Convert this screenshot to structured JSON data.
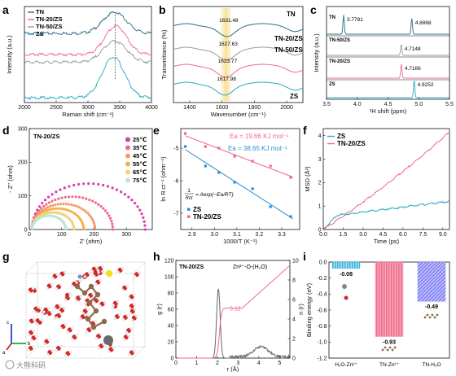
{
  "watermark": "大熊科研",
  "panels": {
    "a": {
      "letter": "a",
      "chart_data": {
        "type": "line",
        "xlabel": "Raman shift (cm⁻¹)",
        "ylabel": "Intensity (a.u.)",
        "xlim": [
          2000,
          4000
        ],
        "xticks": [
          "2000",
          "2500",
          "3000",
          "3500",
          "4000"
        ],
        "legend": "top-left",
        "series": [
          {
            "name": "TN",
            "color": "#2b6f80",
            "offset": 0.72,
            "peak": 3420,
            "width": 260,
            "amp": 0.22
          },
          {
            "name": "TN-20/ZS",
            "color": "#f06a8a",
            "offset": 0.5,
            "peak": 3440,
            "width": 240,
            "amp": 0.3
          },
          {
            "name": "TN-50/ZS",
            "color": "#9a9a9a",
            "offset": 0.42,
            "peak": 3420,
            "width": 260,
            "amp": 0.22
          },
          {
            "name": "ZS",
            "color": "#29a9c2",
            "offset": 0.05,
            "peak": 3400,
            "width": 250,
            "amp": 0.42
          }
        ]
      }
    },
    "b": {
      "letter": "b",
      "chart_data": {
        "type": "line",
        "xlabel": "Wavenumber (cm⁻¹)",
        "ylabel": "Transmittance (%)",
        "xlim": [
          1300,
          2100
        ],
        "xticks": [
          "1400",
          "1600",
          "1800",
          "2000"
        ],
        "legend": "top-right",
        "series": [
          {
            "name": "TN",
            "color": "#2b6f80",
            "peak": 1631.48,
            "label": "1631.48"
          },
          {
            "name": "TN-20/ZS",
            "color": "#9a9a9a",
            "peak": 1627.63,
            "label": "1627.63"
          },
          {
            "name": "TN-50/ZS",
            "color": "#f06a8a",
            "peak": 1623.77,
            "label": "1623.77"
          },
          {
            "name": "ZS",
            "color": "#29a9c2",
            "peak": 1617.98,
            "label": "1617.98"
          }
        ]
      }
    },
    "c": {
      "letter": "c",
      "chart_data": {
        "type": "line",
        "xlabel": "¹H shift (ppm)",
        "ylabel": "Intensity (a.u.)",
        "xlim": [
          5.5,
          3.5
        ],
        "xticks": [
          "3.5",
          "4.0",
          "4.5",
          "5.0",
          "5.5"
        ],
        "series": [
          {
            "name": "TN",
            "color": "#2b6f80",
            "peaks": [
              3.7781,
              4.8868
            ],
            "labels": [
              "3.7781",
              "4.8868"
            ]
          },
          {
            "name": "TN-50/ZS",
            "color": "#9a9a9a",
            "peaks": [
              4.7148
            ],
            "labels": [
              "4.7148"
            ]
          },
          {
            "name": "TN-20/ZS",
            "color": "#f06a8a",
            "peaks": [
              4.7166
            ],
            "labels": [
              "4.7166"
            ]
          },
          {
            "name": "ZS",
            "color": "#29a9c2",
            "peaks": [
              4.9252
            ],
            "labels": [
              "4.9252"
            ]
          }
        ]
      }
    },
    "d": {
      "letter": "d",
      "sample": "TN-20/ZS",
      "chart_data": {
        "type": "scatter",
        "xlabel": "Z' (ohm)",
        "ylabel": "- Z'' (ohm)",
        "xlim": [
          0,
          380
        ],
        "ylim": [
          0,
          300
        ],
        "xticks": [
          "0",
          "100",
          "200",
          "300"
        ],
        "yticks": [
          "0",
          "100",
          "200",
          "300"
        ],
        "series": [
          {
            "name": "25℃",
            "color": "#d63ea8",
            "diameter": 350
          },
          {
            "name": "35℃",
            "color": "#f06a8a",
            "diameter": 250
          },
          {
            "name": "45℃",
            "color": "#f59a6a",
            "diameter": 195
          },
          {
            "name": "55℃",
            "color": "#f4b24a",
            "diameter": 160
          },
          {
            "name": "65℃",
            "color": "#f6d07a",
            "diameter": 130
          },
          {
            "name": "75℃",
            "color": "#b8e6d8",
            "diameter": 105
          }
        ]
      }
    },
    "e": {
      "letter": "e",
      "chart_data": {
        "type": "scatter",
        "xlabel": "1000/T (K⁻¹)",
        "ylabel": "ln R ct⁻¹ (ohm⁻¹)",
        "xlim": [
          2.85,
          3.38
        ],
        "ylim": [
          -7.5,
          -4.4
        ],
        "xticks": [
          "2.9",
          "3.0",
          "3.1",
          "3.2",
          "3.3"
        ],
        "yticks": [
          "-5",
          "-6",
          "-7"
        ],
        "ea_pink": "Ea = 19.66 KJ mol⁻¹",
        "ea_blue": "Ea = 38.65 KJ mol⁻¹",
        "equation_lhs": "1",
        "equation_lhs_den": "Rct",
        "equation_rhs": "= Aexp(−Ea/RT)",
        "series": [
          {
            "name": "ZS",
            "color": "#2a8fd0",
            "x": [
              2.87,
              2.96,
              3.02,
              3.09,
              3.17,
              3.25,
              3.34
            ],
            "y": [
              -4.95,
              -5.55,
              -5.75,
              -6.05,
              -6.25,
              -6.8,
              -7.1
            ]
          },
          {
            "name": "TN-20/ZS",
            "color": "#f06a8a",
            "x": [
              2.87,
              2.96,
              3.02,
              3.09,
              3.17,
              3.25,
              3.34
            ],
            "y": [
              -4.55,
              -4.95,
              -5.0,
              -5.25,
              -5.4,
              -5.55,
              -5.9
            ]
          }
        ]
      }
    },
    "f": {
      "letter": "f",
      "chart_data": {
        "type": "line",
        "xlabel": "Time (ps)",
        "ylabel": "MSD (Å²)",
        "xlim": [
          0,
          9.5
        ],
        "ylim": [
          0,
          4.3
        ],
        "xticks": [
          "0.0",
          "1.5",
          "3.0",
          "4.5",
          "6.0",
          "7.5",
          "9.0"
        ],
        "yticks": [
          "0",
          "1",
          "2",
          "3",
          "4"
        ],
        "legend": "top-left",
        "series": [
          {
            "name": "ZS",
            "color": "#29a9c2",
            "end": 1.2
          },
          {
            "name": "TN-20/ZS",
            "color": "#f06a8a",
            "end": 4.15
          }
        ]
      }
    },
    "g": {
      "letter": "g",
      "axes": {
        "c": "c",
        "a": "a",
        "b": "b"
      }
    },
    "h": {
      "letter": "h",
      "sample": "TN-20/ZS",
      "pair": "Zn²⁺-O-(H₂O)",
      "coord_label": "5.12",
      "chart_data": {
        "type": "line",
        "xlabel": "r (Å)",
        "ylabel_left": "g (r)",
        "ylabel_right": "n (r)",
        "xlim": [
          0,
          5.5
        ],
        "ylim_left": [
          0,
          120
        ],
        "ylim_right": [
          0,
          10
        ],
        "xticks": [
          "0",
          "1",
          "2",
          "3",
          "4",
          "5"
        ],
        "yticks_left": [
          "0",
          "20",
          "40",
          "60",
          "80",
          "100",
          "120"
        ],
        "yticks_right": [
          "0",
          "2",
          "4",
          "6",
          "8",
          "10"
        ]
      }
    },
    "i": {
      "letter": "i",
      "chart_data": {
        "type": "bar",
        "ylabel": "Binding energy (eV)",
        "ylim": [
          -1.2,
          0.0
        ],
        "yticks": [
          "0.0",
          "-0.2",
          "-0.4",
          "-0.6",
          "-0.8",
          "-1.0",
          "-1.2"
        ],
        "categories": [
          "H₂O-Zn²⁺",
          "TN-Zn²⁺",
          "TN-H₂O"
        ],
        "values": [
          -0.08,
          -0.93,
          -0.49
        ],
        "labels": [
          "-0.08",
          "-0.93",
          "-0.49"
        ],
        "colors": [
          "#3fb3e0",
          "#f06a8a",
          "#7c7cf0"
        ]
      }
    }
  }
}
